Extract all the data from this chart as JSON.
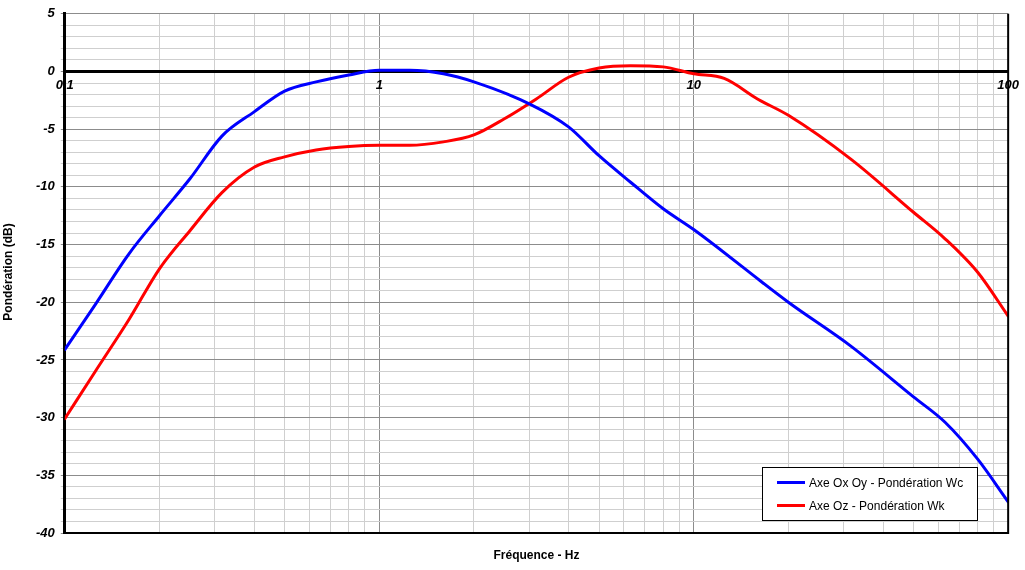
{
  "chart_data": {
    "type": "line",
    "xlabel": "Fréquence - Hz",
    "ylabel": "Pondération  (dB)",
    "log": "x",
    "xlim": [
      0.1,
      100
    ],
    "ylim": [
      -40,
      5
    ],
    "xticks": [
      0.1,
      {
        "value": 0.2,
        "label": null
      },
      {
        "value": 0.3,
        "label": null
      },
      {
        "value": 0.4,
        "label": null
      },
      {
        "value": 0.5,
        "label": null
      },
      {
        "value": 0.6,
        "label": null
      },
      {
        "value": 0.7,
        "label": null
      },
      {
        "value": 0.8,
        "label": null
      },
      {
        "value": 0.9,
        "label": null
      },
      1,
      {
        "value": 2,
        "label": null
      },
      {
        "value": 3,
        "label": null
      },
      {
        "value": 4,
        "label": null
      },
      {
        "value": 5,
        "label": null
      },
      {
        "value": 6,
        "label": null
      },
      {
        "value": 7,
        "label": null
      },
      {
        "value": 8,
        "label": null
      },
      {
        "value": 9,
        "label": null
      },
      10,
      {
        "value": 20,
        "label": null
      },
      {
        "value": 30,
        "label": null
      },
      {
        "value": 40,
        "label": null
      },
      {
        "value": 50,
        "label": null
      },
      {
        "value": 60,
        "label": null
      },
      {
        "value": 70,
        "label": null
      },
      {
        "value": 80,
        "label": null
      },
      {
        "value": 90,
        "label": null
      },
      100
    ],
    "yticks": [
      -40,
      {
        "value": -39,
        "label": null
      },
      {
        "value": -38,
        "label": null
      },
      {
        "value": -37,
        "label": null
      },
      {
        "value": -36,
        "label": null
      },
      -35,
      {
        "value": -34,
        "label": null
      },
      {
        "value": -33,
        "label": null
      },
      {
        "value": -32,
        "label": null
      },
      {
        "value": -31,
        "label": null
      },
      -30,
      {
        "value": -29,
        "label": null
      },
      {
        "value": -28,
        "label": null
      },
      {
        "value": -27,
        "label": null
      },
      {
        "value": -26,
        "label": null
      },
      -25,
      {
        "value": -24,
        "label": null
      },
      {
        "value": -23,
        "label": null
      },
      {
        "value": -22,
        "label": null
      },
      {
        "value": -21,
        "label": null
      },
      -20,
      {
        "value": -19,
        "label": null
      },
      {
        "value": -18,
        "label": null
      },
      {
        "value": -17,
        "label": null
      },
      {
        "value": -16,
        "label": null
      },
      -15,
      {
        "value": -14,
        "label": null
      },
      {
        "value": -13,
        "label": null
      },
      {
        "value": -12,
        "label": null
      },
      {
        "value": -11,
        "label": null
      },
      -10,
      {
        "value": -9,
        "label": null
      },
      {
        "value": -8,
        "label": null
      },
      {
        "value": -7,
        "label": null
      },
      {
        "value": -6,
        "label": null
      },
      -5,
      {
        "value": -4,
        "label": null
      },
      {
        "value": -3,
        "label": null
      },
      {
        "value": -2,
        "label": null
      },
      {
        "value": -1,
        "label": null
      },
      0,
      {
        "value": 1,
        "label": null
      },
      {
        "value": 2,
        "label": null
      },
      {
        "value": 3,
        "label": null
      },
      {
        "value": 4,
        "label": null
      },
      5
    ],
    "grid": true,
    "legend": "bottom right",
    "marker": "none",
    "line_style": "solid",
    "series": [
      {
        "name": "Axe Ox Oy - Pondération Wc",
        "color": "#0000ff",
        "x": [
          0.1,
          0.125,
          0.16,
          0.2,
          0.25,
          0.316,
          0.4,
          0.5,
          0.63,
          0.8,
          1,
          1.25,
          1.6,
          2,
          3,
          4,
          5,
          6.3,
          8,
          10,
          20,
          31.6,
          50,
          63,
          80,
          100
        ],
        "values": [
          -24.1,
          -20.2,
          -15.8,
          -12.5,
          -9.3,
          -5.6,
          -3.5,
          -1.7,
          -0.9,
          -0.3,
          0.1,
          0.1,
          -0.2,
          -0.9,
          -2.8,
          -4.8,
          -7.3,
          -9.6,
          -11.9,
          -13.7,
          -20.0,
          -23.8,
          -28.2,
          -30.4,
          -33.6,
          -37.3
        ]
      },
      {
        "name": "Axe Oz - Pondération Wk",
        "color": "#ff0000",
        "x": [
          0.1,
          0.125,
          0.16,
          0.2,
          0.25,
          0.316,
          0.4,
          0.5,
          0.63,
          0.8,
          1,
          1.25,
          1.6,
          2,
          2.5,
          3.15,
          4,
          5,
          6.3,
          8,
          10,
          12.5,
          16,
          20,
          31.6,
          50,
          63,
          80,
          100
        ],
        "values": [
          -30.1,
          -26,
          -21.5,
          -17.1,
          -13.8,
          -10.5,
          -8.3,
          -7.4,
          -6.8,
          -6.5,
          -6.4,
          -6.4,
          -6.1,
          -5.5,
          -4.1,
          -2.4,
          -0.5,
          0.3,
          0.5,
          0.4,
          -0.2,
          -0.6,
          -2.4,
          -3.8,
          -7.6,
          -12.2,
          -14.5,
          -17.4,
          -21.2
        ]
      }
    ]
  }
}
